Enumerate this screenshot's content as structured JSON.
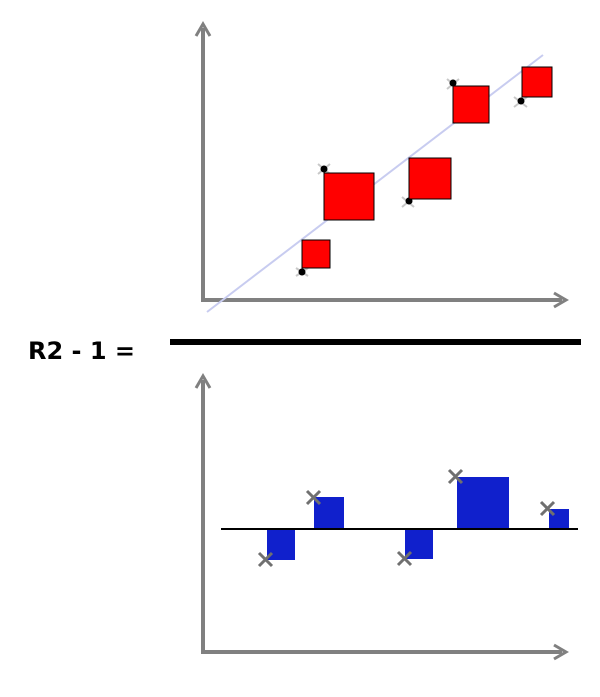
{
  "formula": {
    "label": "R2 - 1 ="
  },
  "colors": {
    "axis": "#808080",
    "regression_line": "#c8ccf0",
    "residual_square_fill": "#ff0000",
    "residual_square_stroke": "#000000",
    "residual_bar_fill": "#1020cc",
    "baseline": "#000000",
    "fraction_bar": "#000000",
    "point_mark": "#c8c8c8",
    "point_dot": "#000000",
    "x_mark": "#707070"
  },
  "icons": {
    "axis_arrow": "arrowhead-icon",
    "observed_point": "x-mark-icon",
    "fitted_point": "dot-icon"
  }
}
